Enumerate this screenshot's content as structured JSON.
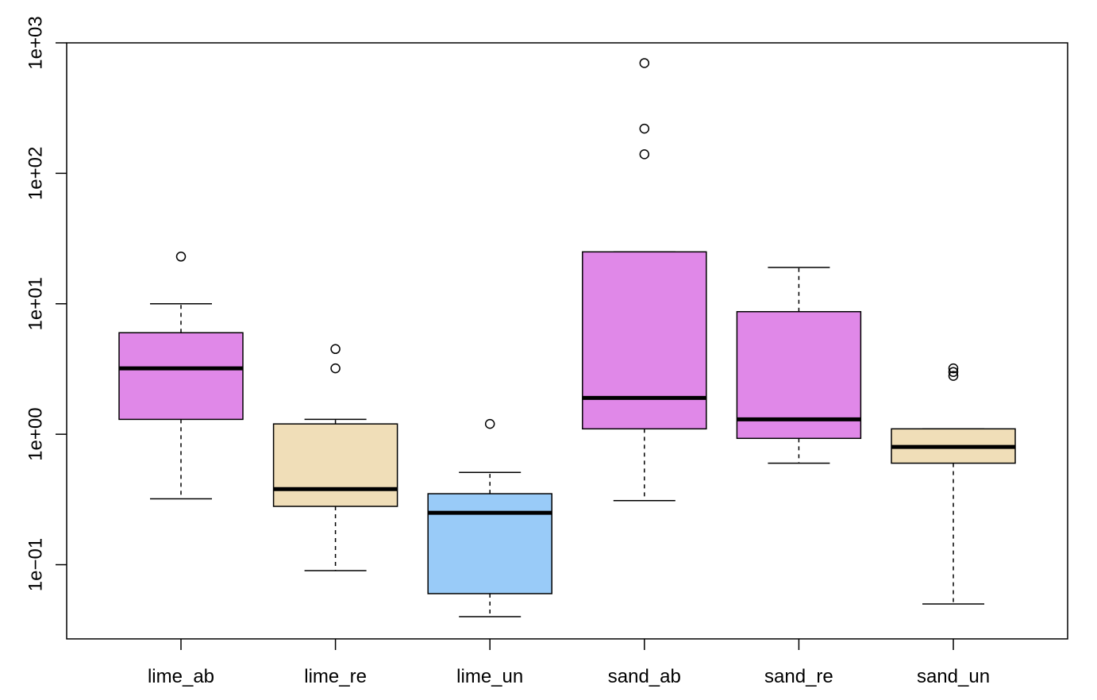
{
  "chart_data": {
    "type": "boxplot",
    "title": "",
    "xlabel": "",
    "ylabel": "",
    "y_scale": "log10",
    "ylim": [
      0.027,
      1000
    ],
    "y_ticks": [
      {
        "value": 0.1,
        "label": "1e−01"
      },
      {
        "value": 1,
        "label": "1e+00"
      },
      {
        "value": 10,
        "label": "1e+01"
      },
      {
        "value": 100,
        "label": "1e+02"
      },
      {
        "value": 1000,
        "label": "1e+03"
      }
    ],
    "grid": false,
    "categories": [
      "lime_ab",
      "lime_re",
      "lime_un",
      "sand_ab",
      "sand_re",
      "sand_un"
    ],
    "boxes": [
      {
        "category": "lime_ab",
        "color": "#E088E8",
        "whisker_low": 0.32,
        "q1": 1.3,
        "median": 3.2,
        "q3": 6.0,
        "whisker_high": 10.0,
        "outliers": [
          23.0
        ]
      },
      {
        "category": "lime_re",
        "color": "#F0DEB8",
        "whisker_low": 0.09,
        "q1": 0.28,
        "median": 0.38,
        "q3": 1.2,
        "whisker_high": 1.3,
        "outliers": [
          3.2,
          4.5
        ]
      },
      {
        "category": "lime_un",
        "color": "#99CBF8",
        "whisker_low": 0.04,
        "q1": 0.06,
        "median": 0.25,
        "q3": 0.35,
        "whisker_high": 0.51,
        "outliers": [
          1.2
        ]
      },
      {
        "category": "sand_ab",
        "color": "#E088E8",
        "whisker_low": 0.31,
        "q1": 1.1,
        "median": 1.9,
        "q3": 25.0,
        "whisker_high": 25.0,
        "outliers": [
          140.0,
          220.0,
          700.0
        ]
      },
      {
        "category": "sand_re",
        "color": "#E088E8",
        "whisker_low": 0.6,
        "q1": 0.93,
        "median": 1.3,
        "q3": 8.7,
        "whisker_high": 19.0,
        "outliers": []
      },
      {
        "category": "sand_un",
        "color": "#F0DEB8",
        "whisker_low": 0.05,
        "q1": 0.6,
        "median": 0.8,
        "q3": 1.1,
        "whisker_high": 1.1,
        "outliers": [
          2.8,
          3.0,
          3.2
        ]
      }
    ]
  }
}
